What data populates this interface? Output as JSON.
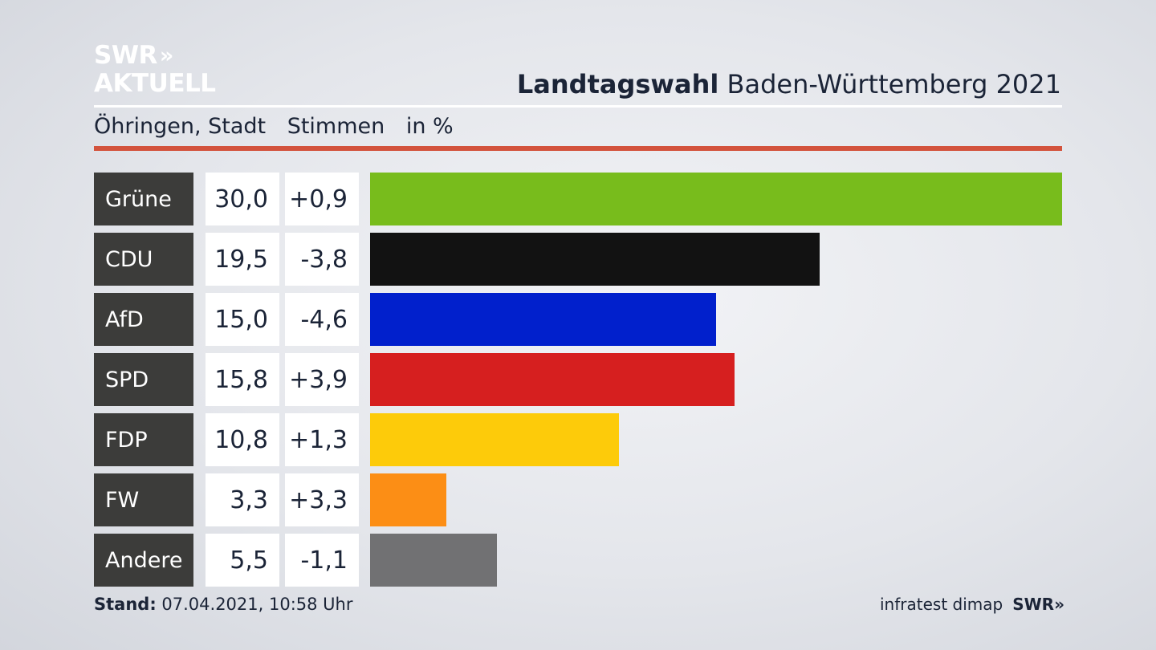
{
  "logo": {
    "line1": "SWR",
    "line1_arrows": "»",
    "line2": "AKTUELL"
  },
  "header": {
    "title_bold": "Landtagswahl",
    "title_rest": " Baden-Württemberg 2021"
  },
  "subheader": {
    "place": "Öhringen, Stadt",
    "metric": "Stimmen",
    "unit": "in %"
  },
  "chart_data": {
    "type": "bar",
    "orientation": "horizontal",
    "categories": [
      "Grüne",
      "CDU",
      "AfD",
      "SPD",
      "FDP",
      "FW",
      "Andere"
    ],
    "values": [
      30.0,
      19.5,
      15.0,
      15.8,
      10.8,
      3.3,
      5.5
    ],
    "value_labels": [
      "30,0",
      "19,5",
      "15,0",
      "15,8",
      "10,8",
      "3,3",
      "5,5"
    ],
    "diff_labels": [
      "+0,9",
      "-3,8",
      "-4,6",
      "+3,9",
      "+1,3",
      "+3,3",
      "-1,1"
    ],
    "colors": [
      "#78bc1c",
      "#121212",
      "#0120cc",
      "#d61f1f",
      "#fdcb0a",
      "#fc8e15",
      "#717173"
    ],
    "xlim": [
      0,
      30
    ]
  },
  "footer": {
    "stand_label": "Stand:",
    "stand_value": " 07.04.2021, 10:58 Uhr",
    "source": "infratest dimap",
    "brand": "SWR",
    "brand_arrows": "»"
  }
}
